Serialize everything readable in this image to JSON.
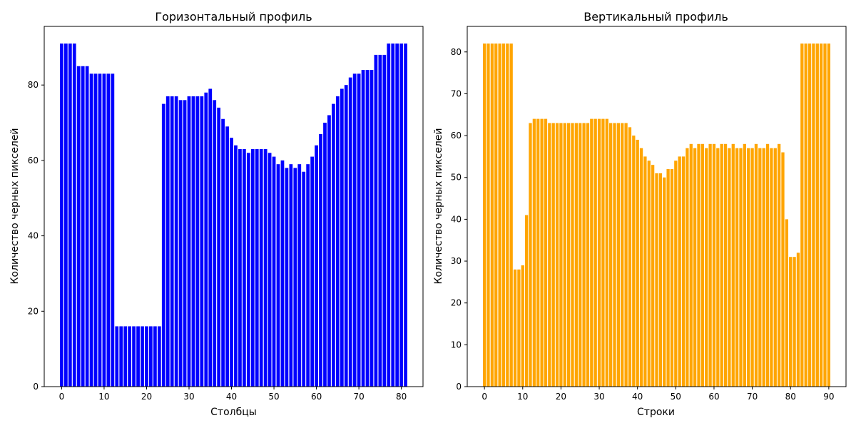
{
  "chart_data": [
    {
      "type": "bar",
      "title": "Горизонтальный профиль",
      "xlabel": "Столбцы",
      "ylabel": "Количество черных пикселей",
      "color": "#0000ff",
      "xlim": [
        -4.1,
        85.1
      ],
      "ylim": [
        0,
        95.55
      ],
      "xticks": [
        0,
        10,
        20,
        30,
        40,
        50,
        60,
        70,
        80
      ],
      "yticks": [
        0,
        20,
        40,
        60,
        80
      ],
      "x_start": 0,
      "values": [
        91,
        91,
        91,
        91,
        85,
        85,
        85,
        83,
        83,
        83,
        83,
        83,
        83,
        16,
        16,
        16,
        16,
        16,
        16,
        16,
        16,
        16,
        16,
        16,
        75,
        77,
        77,
        77,
        76,
        76,
        77,
        77,
        77,
        77,
        78,
        79,
        76,
        74,
        71,
        69,
        66,
        64,
        63,
        63,
        62,
        63,
        63,
        63,
        63,
        62,
        61,
        59,
        60,
        58,
        59,
        58,
        59,
        57,
        59,
        61,
        64,
        67,
        70,
        72,
        75,
        77,
        79,
        80,
        82,
        83,
        83,
        84,
        84,
        84,
        88,
        88,
        88,
        91,
        91,
        91,
        91,
        91
      ]
    },
    {
      "type": "bar",
      "title": "Вертикальный профиль",
      "xlabel": "Строки",
      "ylabel": "Количество черных пикселей",
      "color": "#ffa500",
      "xlim": [
        -4.5,
        94.5
      ],
      "ylim": [
        0,
        86.1
      ],
      "xticks": [
        0,
        10,
        20,
        30,
        40,
        50,
        60,
        70,
        80,
        90
      ],
      "yticks": [
        0,
        10,
        20,
        30,
        40,
        50,
        60,
        70,
        80
      ],
      "x_start": 0,
      "values": [
        82,
        82,
        82,
        82,
        82,
        82,
        82,
        82,
        28,
        28,
        29,
        41,
        63,
        64,
        64,
        64,
        64,
        63,
        63,
        63,
        63,
        63,
        63,
        63,
        63,
        63,
        63,
        63,
        64,
        64,
        64,
        64,
        64,
        63,
        63,
        63,
        63,
        63,
        62,
        60,
        59,
        57,
        55,
        54,
        53,
        51,
        51,
        50,
        52,
        52,
        54,
        55,
        55,
        57,
        58,
        57,
        58,
        58,
        57,
        58,
        58,
        57,
        58,
        58,
        57,
        58,
        57,
        57,
        58,
        57,
        57,
        58,
        57,
        57,
        58,
        57,
        57,
        58,
        56,
        40,
        31,
        31,
        32,
        82,
        82,
        82,
        82,
        82,
        82,
        82,
        82
      ]
    }
  ]
}
